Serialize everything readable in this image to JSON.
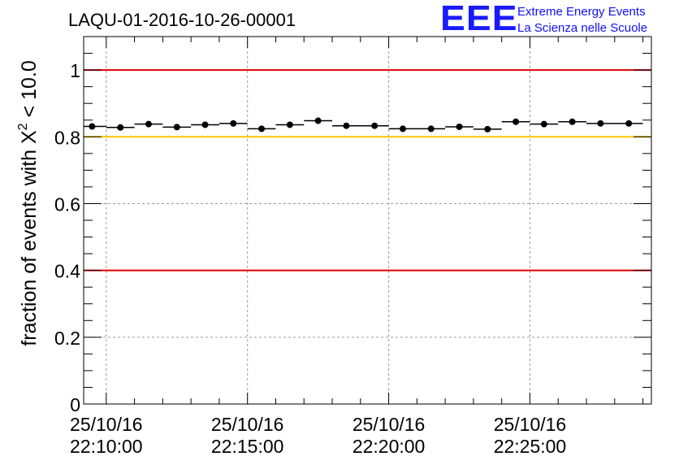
{
  "chart_data": {
    "type": "scatter",
    "title": "LAQU-01-2016-10-26-00001",
    "xlabel": "",
    "ylabel_prefix": "fraction of events with ",
    "ylabel_symbol": "X",
    "ylabel_exponent": "2",
    "ylabel_suffix": " < 10.0",
    "ylim": [
      0,
      1.1
    ],
    "xlim": [
      -0.8,
      19.3
    ],
    "grid": true,
    "y_ticks": [
      "0",
      "0.2",
      "0.4",
      "0.6",
      "0.8",
      "1"
    ],
    "y_tick_values": [
      0,
      0.2,
      0.4,
      0.6,
      0.8,
      1.0
    ],
    "x_ticks": [
      {
        "date": "25/10/16",
        "time": "22:10:00"
      },
      {
        "date": "25/10/16",
        "time": "22:15:00"
      },
      {
        "date": "25/10/16",
        "time": "22:20:00"
      },
      {
        "date": "25/10/16",
        "time": "22:25:00"
      }
    ],
    "x_tick_values": [
      0,
      5,
      10,
      15
    ],
    "x": [
      -0.5,
      0.5,
      1.5,
      2.5,
      3.5,
      4.5,
      5.5,
      6.5,
      7.5,
      8.5,
      9.5,
      10.5,
      11.5,
      12.5,
      13.5,
      14.5,
      15.5,
      16.5,
      17.5,
      18.5
    ],
    "values": [
      0.831,
      0.828,
      0.838,
      0.829,
      0.836,
      0.84,
      0.824,
      0.836,
      0.848,
      0.833,
      0.833,
      0.824,
      0.824,
      0.83,
      0.823,
      0.845,
      0.838,
      0.845,
      0.84,
      0.84
    ],
    "bin_width": 1.0,
    "reference_lines": [
      {
        "y": 1.0,
        "color": "#e00000"
      },
      {
        "y": 0.8,
        "color": "#ffc400"
      },
      {
        "y": 0.4,
        "color": "#e00000"
      }
    ]
  },
  "logo": {
    "mark": "EEE",
    "line1": "Extreme Energy Events",
    "line2": "La Scienza nelle Scuole",
    "color": "#1010ff"
  }
}
